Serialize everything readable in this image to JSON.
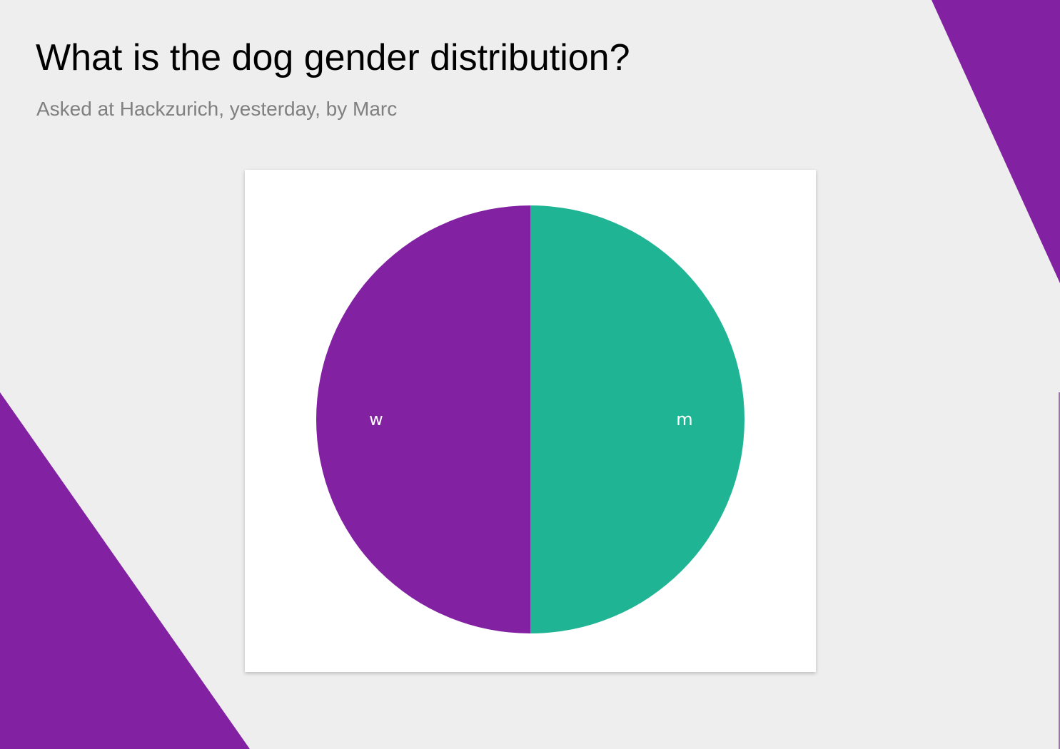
{
  "page": {
    "title": "What is the dog gender distribution?",
    "subtitle": "Asked at Hackzurich, yesterday, by Marc"
  },
  "colors": {
    "background": "#eeeeee",
    "accent_purple": "#8221a1",
    "teal": "#1fb493",
    "card": "#ffffff"
  },
  "chart_data": {
    "type": "pie",
    "title": "",
    "slices": [
      {
        "label": "m",
        "value": 50,
        "color": "#1fb493"
      },
      {
        "label": "w",
        "value": 50,
        "color": "#8221a1"
      }
    ],
    "start_angle": "top",
    "direction": "clockwise",
    "legend": "none"
  }
}
